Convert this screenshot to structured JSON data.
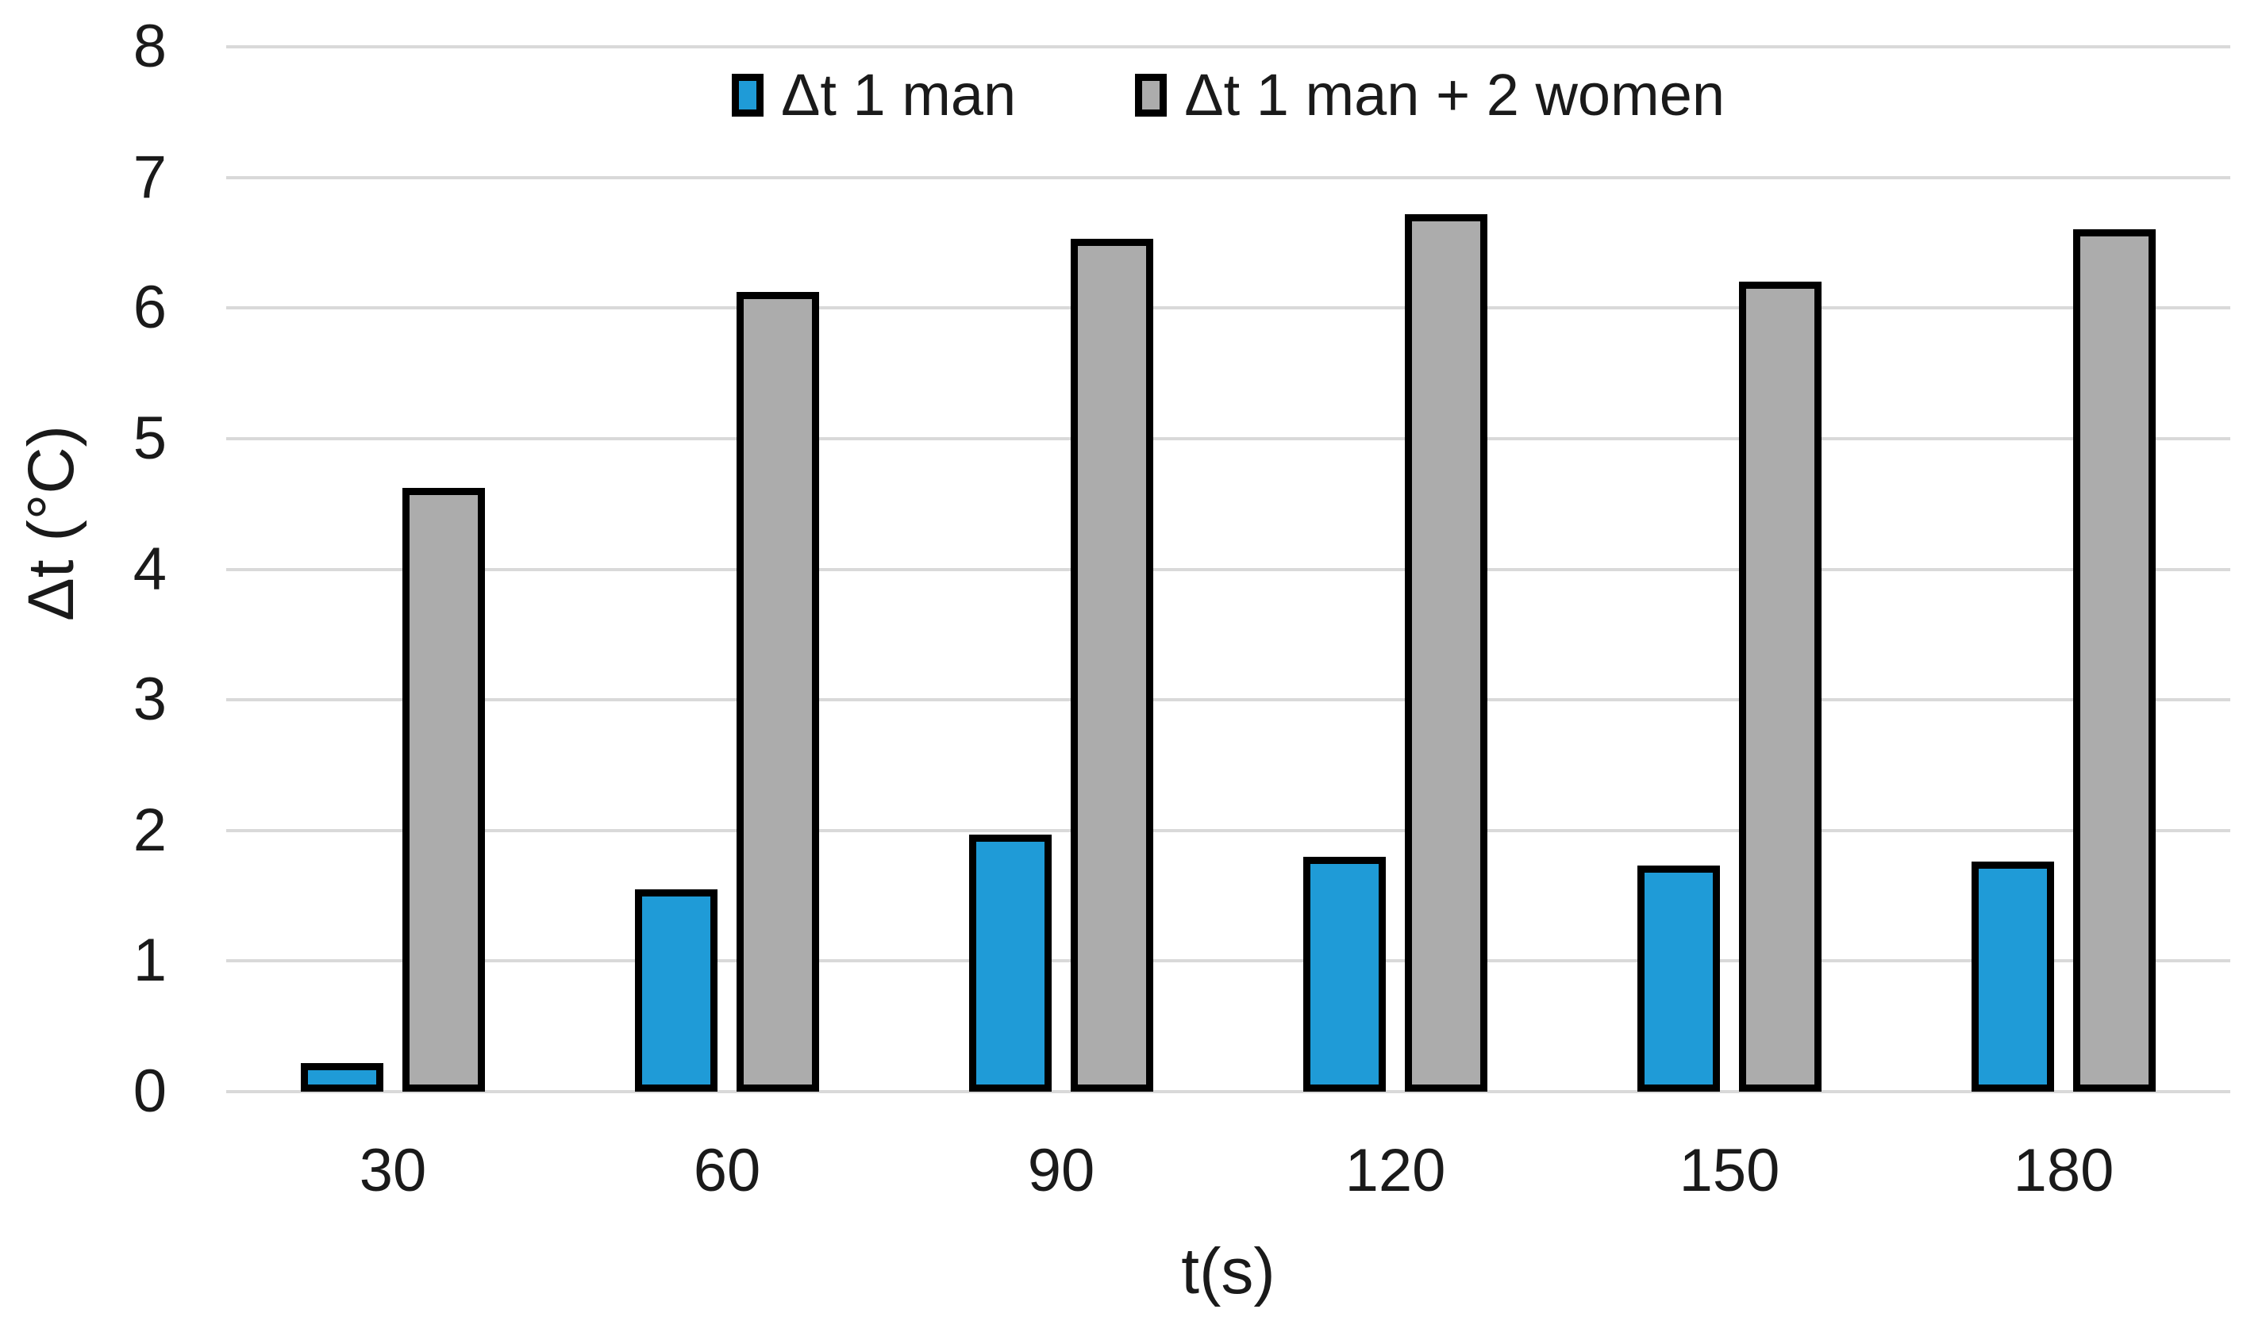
{
  "chart_data": {
    "type": "bar",
    "title": "",
    "xlabel": "t(s)",
    "ylabel": "Δt (°C)",
    "categories": [
      "30",
      "60",
      "90",
      "120",
      "150",
      "180"
    ],
    "series": [
      {
        "name": "Δt 1 man",
        "color": "#1f9bd7",
        "values": [
          0.22,
          1.55,
          1.97,
          1.8,
          1.73,
          1.76
        ]
      },
      {
        "name": "Δt 1 man + 2 women",
        "color": "#acacac",
        "values": [
          4.62,
          6.12,
          6.53,
          6.72,
          6.2,
          6.6
        ]
      }
    ],
    "ylim": [
      0,
      8
    ],
    "y_ticks": [
      "0",
      "1",
      "2",
      "3",
      "4",
      "5",
      "6",
      "7",
      "8"
    ],
    "grid": true,
    "legend_position": "top-center",
    "colors": {
      "bar_border": "#000000",
      "gridline": "#d9d9d9",
      "text": "#1a1a1a",
      "background": "#ffffff"
    }
  }
}
